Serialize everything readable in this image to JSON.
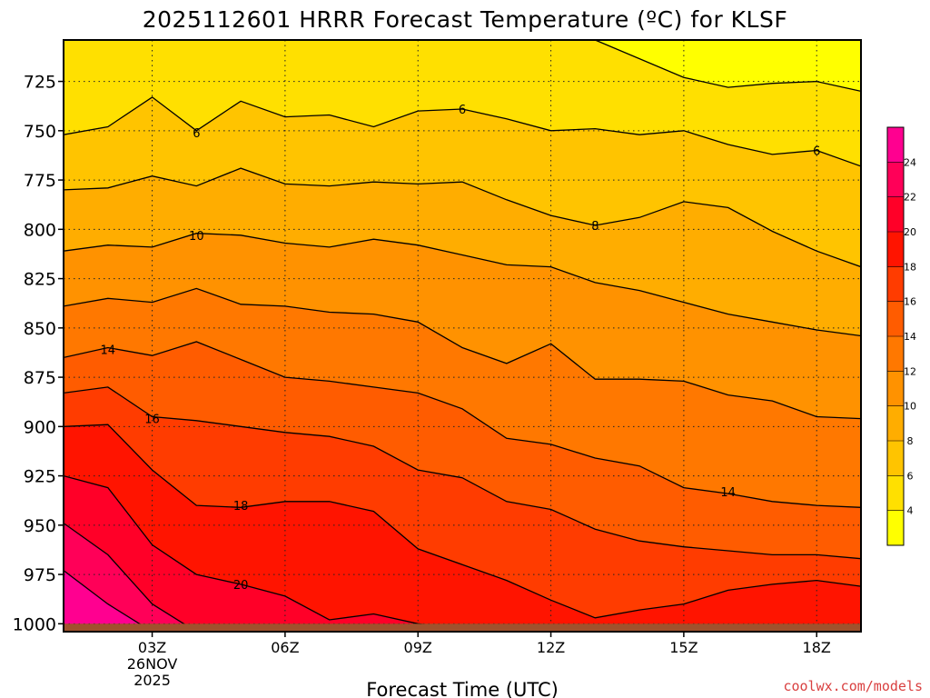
{
  "chart_data": {
    "type": "contour",
    "title": "2025112601 HRRR Forecast Temperature (ºC) for KLSF",
    "xlabel": "Forecast Time (UTC)",
    "x_ticks": [
      {
        "hour": 3,
        "label": "03Z",
        "sub1": "26NOV",
        "sub2": "2025"
      },
      {
        "hour": 6,
        "label": "06Z"
      },
      {
        "hour": 9,
        "label": "09Z"
      },
      {
        "hour": 12,
        "label": "12Z"
      },
      {
        "hour": 15,
        "label": "15Z"
      },
      {
        "hour": 18,
        "label": "18Z"
      }
    ],
    "x_range": [
      1,
      19
    ],
    "y_ticks": [
      725,
      750,
      775,
      800,
      825,
      850,
      875,
      900,
      925,
      950,
      975,
      1000
    ],
    "y_range_hpa": [
      704,
      1004
    ],
    "surface_pressure_hpa": 1000,
    "contour_levels": [
      4,
      6,
      8,
      10,
      12,
      14,
      16,
      18,
      20,
      22,
      24
    ],
    "colorbar": {
      "ticks": [
        4,
        6,
        8,
        10,
        12,
        14,
        16,
        18,
        20,
        22,
        24
      ],
      "colors": [
        "#ffff00",
        "#ffe000",
        "#ffc400",
        "#ffad00",
        "#ff9200",
        "#ff7800",
        "#ff5c00",
        "#ff3c00",
        "#ff1400",
        "#ff0028",
        "#ff0058",
        "#ff0090"
      ]
    },
    "isotherms": [
      {
        "level": 4,
        "hours": [
          13,
          15,
          16,
          17,
          18,
          19
        ],
        "hpa": [
          704,
          723,
          728,
          726,
          725,
          730
        ]
      },
      {
        "level": 6,
        "hours": [
          1,
          2,
          3,
          4,
          5,
          6,
          7,
          8,
          9,
          10,
          11,
          12,
          13,
          14,
          15,
          16,
          17,
          18,
          19
        ],
        "hpa": [
          752,
          748,
          733,
          750,
          735,
          743,
          742,
          748,
          740,
          739,
          744,
          750,
          749,
          752,
          750,
          757,
          762,
          760,
          768
        ]
      },
      {
        "level": 8,
        "hours": [
          1,
          2,
          3,
          4,
          5,
          6,
          7,
          8,
          9,
          10,
          11,
          12,
          13,
          14,
          15,
          16,
          17,
          18,
          19
        ],
        "hpa": [
          780,
          779,
          773,
          778,
          769,
          777,
          778,
          776,
          777,
          776,
          785,
          793,
          798,
          794,
          786,
          789,
          801,
          811,
          819
        ]
      },
      {
        "level": 10,
        "hours": [
          1,
          2,
          3,
          4,
          5,
          6,
          7,
          8,
          9,
          10,
          11,
          12,
          13,
          14,
          15,
          16,
          17,
          18,
          19
        ],
        "hpa": [
          811,
          808,
          809,
          802,
          803,
          807,
          809,
          805,
          808,
          813,
          818,
          819,
          827,
          831,
          837,
          843,
          847,
          851,
          854
        ]
      },
      {
        "level": 12,
        "hours": [
          1,
          2,
          3,
          4,
          5,
          6,
          7,
          8,
          9,
          10,
          11,
          12,
          13,
          14,
          15,
          16,
          17,
          18,
          19
        ],
        "hpa": [
          839,
          835,
          837,
          830,
          838,
          839,
          842,
          843,
          847,
          860,
          868,
          858,
          876,
          876,
          877,
          884,
          887,
          895,
          896
        ]
      },
      {
        "level": 14,
        "hours": [
          1,
          2,
          3,
          4,
          5,
          6,
          7,
          8,
          9,
          10,
          11,
          12,
          13,
          14,
          15,
          16,
          17,
          18,
          19
        ],
        "hpa": [
          865,
          860,
          864,
          857,
          866,
          875,
          877,
          880,
          883,
          891,
          906,
          909,
          916,
          920,
          931,
          934,
          938,
          940,
          941
        ]
      },
      {
        "level": 16,
        "hours": [
          1,
          2,
          3,
          4,
          5,
          6,
          7,
          8,
          9,
          10,
          11,
          12,
          13,
          14,
          15,
          16,
          17,
          18,
          19
        ],
        "hpa": [
          883,
          880,
          895,
          897,
          900,
          903,
          905,
          910,
          922,
          926,
          938,
          942,
          952,
          958,
          961,
          963,
          965,
          965,
          967
        ]
      },
      {
        "level": 18,
        "hours": [
          1,
          2,
          3,
          4,
          5,
          6,
          7,
          8,
          9,
          10,
          11,
          12,
          13,
          14,
          15,
          16,
          17,
          18,
          19
        ],
        "hpa": [
          900,
          899,
          922,
          940,
          941,
          938,
          938,
          943,
          962,
          970,
          978,
          988,
          997,
          993,
          990,
          983,
          980,
          978,
          981
        ]
      },
      {
        "level": 20,
        "hours": [
          1,
          2,
          3,
          4,
          5,
          6,
          7,
          8,
          9,
          10,
          11,
          12
        ],
        "hpa": [
          925,
          931,
          960,
          975,
          980,
          986,
          998,
          995,
          1000,
          1003,
          1002,
          1004
        ]
      },
      {
        "level": 22,
        "hours": [
          1,
          2,
          3,
          4
        ],
        "hpa": [
          949,
          965,
          990,
          1004
        ]
      },
      {
        "level": 24,
        "hours": [
          1,
          2,
          3
        ],
        "hpa": [
          973,
          990,
          1004
        ]
      }
    ],
    "contour_labels": [
      {
        "text": "6",
        "hour": 4,
        "hpa": 751
      },
      {
        "text": "6",
        "hour": 10,
        "hpa": 739
      },
      {
        "text": "6",
        "hour": 18,
        "hpa": 760
      },
      {
        "text": "8",
        "hour": 13,
        "hpa": 798
      },
      {
        "text": "10",
        "hour": 4,
        "hpa": 803
      },
      {
        "text": "14",
        "hour": 2,
        "hpa": 861
      },
      {
        "text": "14",
        "hour": 16,
        "hpa": 933
      },
      {
        "text": "16",
        "hour": 3,
        "hpa": 896
      },
      {
        "text": "18",
        "hour": 5,
        "hpa": 940
      },
      {
        "text": "20",
        "hour": 5,
        "hpa": 980
      }
    ]
  },
  "credit": "coolwx.com/models"
}
